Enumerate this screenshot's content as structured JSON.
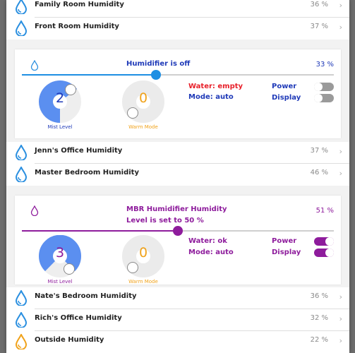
{
  "colors": {
    "blue_accent": "#1e8fe3",
    "purple_accent": "#8e1c9c",
    "drop_blue": "#2a8fe0",
    "drop_orange": "#f0a21a",
    "warm_orange": "#f0a21a",
    "red_text": "#e8202a",
    "dial_blue": "#5b8ff0"
  },
  "rows_top": [
    {
      "label": "Family Room Humidity",
      "value": "36 %",
      "icon": "water-drop-icon"
    },
    {
      "label": "Front Room Humidity",
      "value": "37 %",
      "icon": "water-drop-icon"
    }
  ],
  "humidifier1": {
    "title": "Humidifier is off",
    "percent": "33 %",
    "slider_level": 0.43,
    "mist_value": "2",
    "mist_caption": "Mist Level",
    "warm_value": "0",
    "warm_caption": "Warm Mode",
    "water": "Water: empty",
    "mode": "Mode: auto",
    "power_label": "Power",
    "display_label": "Display",
    "power_on": false,
    "display_on": false
  },
  "rows_mid": [
    {
      "label": "Jenn's Office Humidity",
      "value": "37 %",
      "icon": "water-drop-icon"
    },
    {
      "label": "Master Bedroom Humidity",
      "value": "46 %",
      "icon": "water-drop-icon"
    }
  ],
  "humidifier2": {
    "title_line1": "MBR Humidifier Humidity",
    "title_line2": "Level is set to 50 %",
    "percent": "51 %",
    "slider_level": 0.5,
    "mist_value": "3",
    "mist_caption": "Mist Level",
    "warm_value": "0",
    "warm_caption": "Warm Mode",
    "water": "Water: ok",
    "mode": "Mode: auto",
    "power_label": "Power",
    "display_label": "Display",
    "power_on": true,
    "display_on": true
  },
  "rows_bottom": [
    {
      "label": "Nate's Bedroom Humidity",
      "value": "36 %",
      "icon": "water-drop-icon"
    },
    {
      "label": "Rich's Office Humidity",
      "value": "32 %",
      "icon": "water-drop-icon"
    },
    {
      "label": "Outside Humidity",
      "value": "22 %",
      "icon": "water-drop-orange-icon"
    }
  ]
}
